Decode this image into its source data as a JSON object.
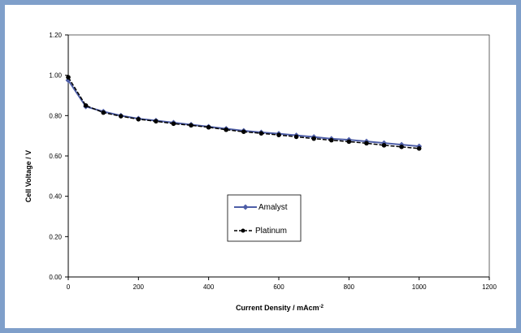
{
  "colors": {
    "frame": "#7f9fca",
    "amalyst": "#4e5ea7",
    "platinum": "#000000"
  },
  "chart_data": {
    "type": "line",
    "title": "",
    "xlabel": "Current Density / mAcm",
    "xlabel_superscript": "-2",
    "ylabel": "Cell Voltage / V",
    "xlim": [
      0,
      1200
    ],
    "ylim": [
      0,
      1.2
    ],
    "x_ticks": [
      "0",
      "200",
      "400",
      "600",
      "800",
      "1000",
      "1200"
    ],
    "y_ticks": [
      "0.00",
      "0.20",
      "0.40",
      "0.60",
      "0.80",
      "1.00",
      "1.20"
    ],
    "grid": false,
    "legend_position": "center",
    "series": [
      {
        "name": "Amalyst",
        "marker": "diamond",
        "line": "solid",
        "x": [
          0,
          50,
          100,
          150,
          200,
          250,
          300,
          350,
          400,
          450,
          500,
          550,
          600,
          650,
          700,
          750,
          800,
          850,
          900,
          950,
          1000
        ],
        "y": [
          0.975,
          0.845,
          0.82,
          0.8,
          0.785,
          0.775,
          0.765,
          0.755,
          0.745,
          0.735,
          0.725,
          0.717,
          0.71,
          0.702,
          0.694,
          0.685,
          0.68,
          0.672,
          0.664,
          0.656,
          0.648
        ]
      },
      {
        "name": "Platinum",
        "marker": "circle",
        "line": "dashed",
        "x": [
          0,
          50,
          100,
          150,
          200,
          250,
          300,
          350,
          400,
          450,
          500,
          550,
          600,
          650,
          700,
          750,
          800,
          850,
          900,
          950,
          1000
        ],
        "y": [
          0.99,
          0.85,
          0.815,
          0.797,
          0.782,
          0.772,
          0.76,
          0.752,
          0.742,
          0.73,
          0.72,
          0.712,
          0.704,
          0.695,
          0.686,
          0.678,
          0.671,
          0.663,
          0.653,
          0.645,
          0.637
        ]
      }
    ]
  }
}
